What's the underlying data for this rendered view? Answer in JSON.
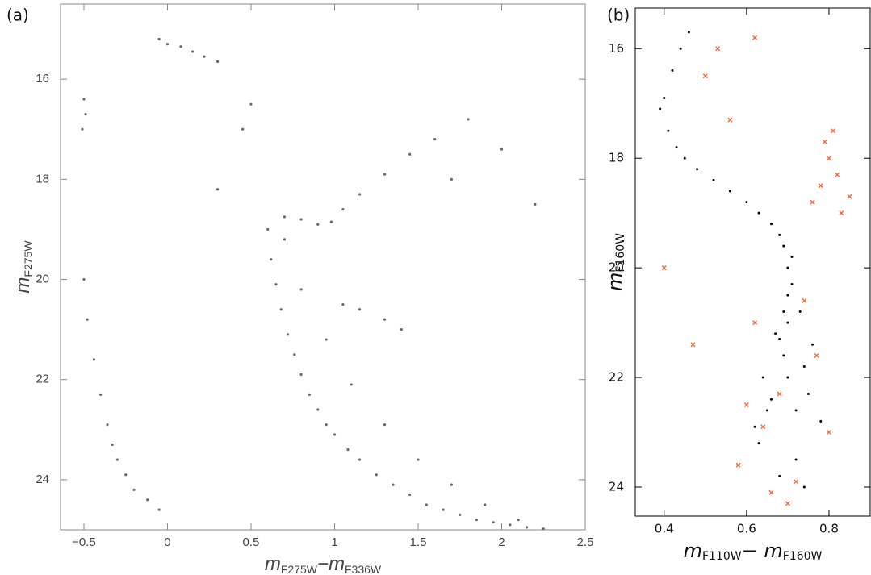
{
  "chart_data": [
    {
      "type": "scatter",
      "panel_label": "(a)",
      "xlabel": [
        "m",
        "F275W",
        "−m",
        "F336W"
      ],
      "ylabel": [
        "m",
        "F275W"
      ],
      "xlim": [
        -0.64,
        2.5
      ],
      "ylim": [
        25,
        14.5
      ],
      "xticks": [
        {
          "value": -0.5,
          "label": "−0.5"
        },
        0,
        0.5,
        1,
        1.5,
        2,
        2.5
      ],
      "yticks": [
        16,
        18,
        20,
        22,
        24
      ],
      "series": [
        {
          "color": "#6a6a6a",
          "marker": "dot",
          "x": [
            0.6,
            0.62,
            0.65,
            0.68,
            0.72,
            0.76,
            0.8,
            0.85,
            0.9,
            0.95,
            1.0,
            1.08,
            1.15,
            1.25,
            1.35,
            1.45,
            1.55,
            1.65,
            1.75,
            1.85,
            1.95,
            2.05,
            2.15,
            2.25,
            0.7,
            0.8,
            0.95,
            1.1,
            1.3,
            1.5,
            1.7,
            1.9,
            2.1,
            0.7,
            0.8,
            0.9,
            0.98,
            1.05,
            1.15,
            1.3,
            1.45,
            1.6,
            1.05,
            1.15,
            1.3,
            1.4,
            0.0,
            0.08,
            0.15,
            0.22,
            0.3,
            -0.05,
            -0.5,
            -0.49,
            -0.51,
            -0.5,
            -0.48,
            -0.44,
            -0.4,
            -0.36,
            -0.33,
            -0.3,
            -0.25,
            -0.2,
            -0.12,
            -0.05,
            0.3,
            0.45,
            1.8,
            2.0,
            2.2,
            0.5,
            1.7
          ],
          "y": [
            19.0,
            19.6,
            20.1,
            20.6,
            21.1,
            21.5,
            21.9,
            22.3,
            22.6,
            22.9,
            23.1,
            23.4,
            23.6,
            23.9,
            24.1,
            24.3,
            24.5,
            24.6,
            24.7,
            24.8,
            24.85,
            24.9,
            24.95,
            24.98,
            19.2,
            20.2,
            21.2,
            22.1,
            22.9,
            23.6,
            24.1,
            24.5,
            24.8,
            18.75,
            18.8,
            18.9,
            18.85,
            18.6,
            18.3,
            17.9,
            17.5,
            17.2,
            20.5,
            20.6,
            20.8,
            21.0,
            15.3,
            15.35,
            15.45,
            15.55,
            15.65,
            15.2,
            16.4,
            16.7,
            17.0,
            20.0,
            20.8,
            21.6,
            22.3,
            22.9,
            23.3,
            23.6,
            23.9,
            24.2,
            24.4,
            24.6,
            18.2,
            17.0,
            16.8,
            17.4,
            18.5,
            16.5,
            18.0
          ]
        }
      ]
    },
    {
      "type": "scatter",
      "panel_label": "(b)",
      "xlabel": [
        "m",
        "F110W",
        "− m",
        "F160W"
      ],
      "ylabel": [
        "m",
        "F160W"
      ],
      "xlim": [
        0.33,
        0.9
      ],
      "ylim": [
        24.53,
        15.26
      ],
      "xticks": [
        0.4,
        0.6,
        0.8
      ],
      "yticks": [
        16,
        18,
        20,
        22,
        24
      ],
      "series": [
        {
          "color": "#000000",
          "marker": "dot",
          "x": [
            0.46,
            0.44,
            0.42,
            0.4,
            0.39,
            0.41,
            0.43,
            0.45,
            0.48,
            0.52,
            0.56,
            0.6,
            0.63,
            0.66,
            0.68,
            0.69,
            0.7,
            0.71,
            0.7,
            0.69,
            0.7,
            0.68,
            0.69,
            0.7,
            0.66,
            0.72,
            0.73,
            0.67,
            0.74,
            0.65,
            0.75,
            0.63,
            0.72,
            0.76,
            0.64,
            0.71,
            0.78,
            0.62,
            0.68,
            0.74
          ],
          "y": [
            15.7,
            16.0,
            16.4,
            16.9,
            17.1,
            17.5,
            17.8,
            18.0,
            18.2,
            18.4,
            18.6,
            18.8,
            19.0,
            19.2,
            19.4,
            19.6,
            20.0,
            20.3,
            20.5,
            20.8,
            21.0,
            21.3,
            21.6,
            22.0,
            22.4,
            22.6,
            20.8,
            21.2,
            21.8,
            22.6,
            22.3,
            23.2,
            23.5,
            21.4,
            22.0,
            19.8,
            22.8,
            22.9,
            23.8,
            24.0
          ]
        },
        {
          "color": "#f2683a",
          "marker": "cross",
          "x": [
            0.8,
            0.78,
            0.62,
            0.5,
            0.74,
            0.62,
            0.68,
            0.58,
            0.8,
            0.4,
            0.47,
            0.83,
            0.7,
            0.79,
            0.56,
            0.76,
            0.82,
            0.64,
            0.72,
            0.6,
            0.85,
            0.53,
            0.77,
            0.66,
            0.81
          ],
          "y": [
            18.0,
            18.5,
            15.8,
            16.5,
            20.6,
            21.0,
            22.3,
            23.6,
            23.0,
            20.0,
            21.4,
            19.0,
            24.3,
            17.7,
            17.3,
            18.8,
            18.3,
            22.9,
            23.9,
            22.5,
            18.7,
            16.0,
            21.6,
            24.1,
            17.5
          ]
        }
      ]
    }
  ]
}
